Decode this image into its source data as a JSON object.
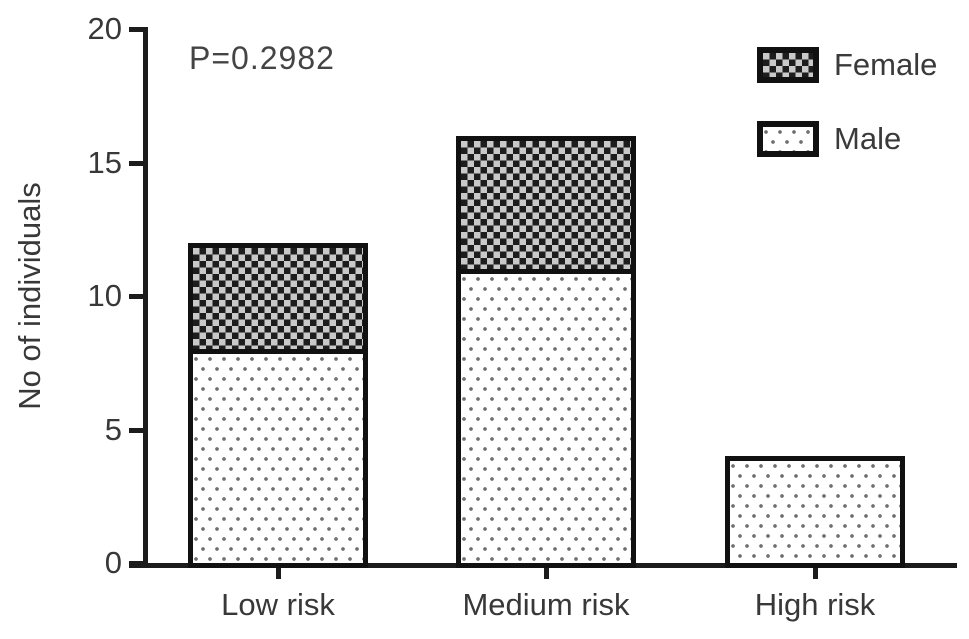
{
  "chart_data": {
    "type": "bar",
    "stacked": true,
    "title": "",
    "annotation": "P=0.2982",
    "ylabel": "No of individuals",
    "xlabel": "",
    "ylim": [
      0,
      20
    ],
    "yticks": [
      0,
      5,
      10,
      15,
      20
    ],
    "categories": [
      "Low risk",
      "Medium risk",
      "High risk"
    ],
    "series": [
      {
        "name": "Male",
        "pattern": "dots",
        "values": [
          8,
          11,
          4
        ]
      },
      {
        "name": "Female",
        "pattern": "checker",
        "values": [
          4,
          5,
          0
        ]
      }
    ],
    "totals": [
      12,
      16,
      4
    ],
    "legend": [
      "Female",
      "Male"
    ],
    "legend_position": "top-right",
    "grid": false,
    "colors": {
      "outline": "#111111",
      "axis": "#1c1c1c",
      "text": "#383838",
      "dot_fill_bg": "#ffffff",
      "dot_color": "#6f6f6f",
      "checker_dark": "#1d1d1d",
      "checker_light": "#c9c9c9"
    }
  }
}
